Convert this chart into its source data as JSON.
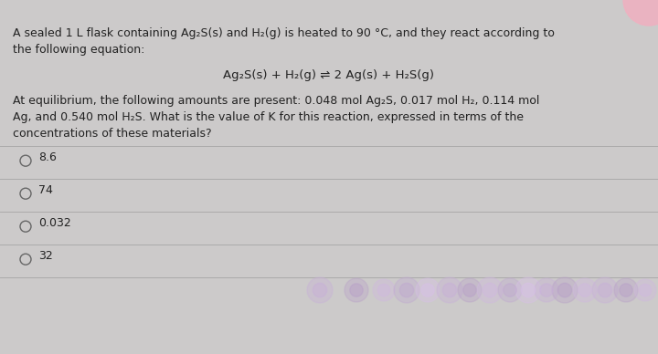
{
  "bg_color": "#cccaca",
  "title_text_line1": "A sealed 1 L flask containing Ag₂S(s) and H₂(g) is heated to 90 °C, and they react according to",
  "title_text_line2": "the following equation:",
  "equation": "Ag₂S(s) + H₂(g) ⇌ 2 Ag(s) + H₂S(g)",
  "body_text_line1": "At equilibrium, the following amounts are present: 0.048 mol Ag₂S, 0.017 mol H₂, 0.114 mol",
  "body_text_line2": "Ag, and 0.540 mol H₂S. What is the value of K for this reaction, expressed in terms of the",
  "body_text_line3": "concentrations of these materials?",
  "options": [
    "8.6",
    "74",
    "0.032",
    "32"
  ],
  "divider_color": "#aaaaaa",
  "text_color": "#222222",
  "circle_color": "#666666",
  "blob_colors": [
    "#c8b0d8",
    "#b8a0c8",
    "#d0b8e0",
    "#c0a8d0",
    "#d8c0e8",
    "#c8b0d8",
    "#b8a0c8",
    "#d0b8e0",
    "#c0a8d0",
    "#d8c0e8",
    "#c8b0d8",
    "#b8a0c8",
    "#d0b8e0"
  ],
  "pink_color": "#f0b0c0"
}
